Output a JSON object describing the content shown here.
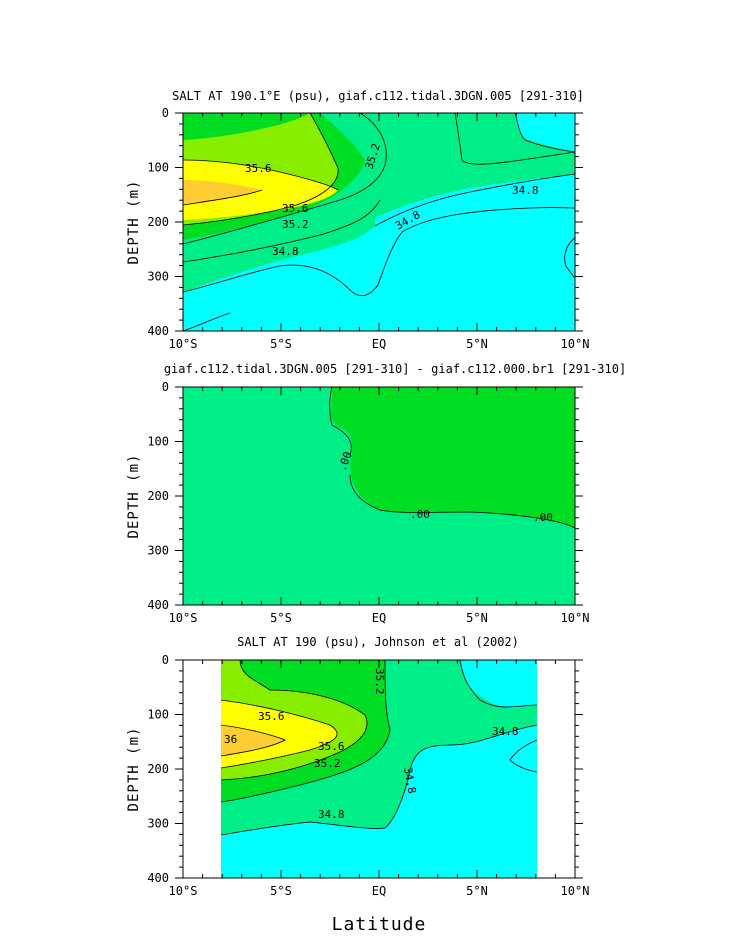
{
  "figure": {
    "xlabel": "Latitude",
    "colors": {
      "c1": "#00ffff",
      "c2": "#00ee88",
      "c3": "#00dd22",
      "c4": "#88ee00",
      "c5": "#ffff00",
      "c6": "#ffcc33"
    }
  },
  "chart_data": [
    {
      "type": "heatmap",
      "title": "SALT AT 190.1°E (psu), giaf.c112.tidal.3DGN.005 [291-310]",
      "ylabel": "DEPTH (m)",
      "xlabel": "",
      "xlim": [
        -10,
        10
      ],
      "ylim": [
        400,
        0
      ],
      "x_ticks": [
        "10°S",
        "5°S",
        "EQ",
        "5°N",
        "10°N"
      ],
      "y_ticks": [
        "0",
        "100",
        "200",
        "300",
        "400"
      ],
      "contour_labels": [
        "35.6",
        "35.6",
        "35.2",
        "35.2",
        "34.8",
        "34.8",
        "34.8"
      ],
      "contour_levels": [
        34.8,
        35.2,
        35.6
      ]
    },
    {
      "type": "heatmap",
      "title": "giaf.c112.tidal.3DGN.005 [291-310] - giaf.c112.000.br1 [291-310]",
      "ylabel": "DEPTH (m)",
      "xlabel": "",
      "xlim": [
        -10,
        10
      ],
      "ylim": [
        400,
        0
      ],
      "x_ticks": [
        "10°S",
        "5°S",
        "EQ",
        "5°N",
        "10°N"
      ],
      "y_ticks": [
        "0",
        "100",
        "200",
        "300",
        "400"
      ],
      "contour_labels": [
        ".00",
        ".00",
        ".00"
      ],
      "contour_levels": [
        0
      ]
    },
    {
      "type": "heatmap",
      "title": "SALT AT 190 (psu), Johnson et al (2002)",
      "ylabel": "DEPTH (m)",
      "xlabel": "Latitude",
      "xlim": [
        -10,
        10
      ],
      "ylim": [
        400,
        0
      ],
      "data_extent_lat": [
        -8,
        8
      ],
      "data_extent_depth": [
        10,
        400
      ],
      "x_ticks": [
        "10°S",
        "5°S",
        "EQ",
        "5°N",
        "10°N"
      ],
      "y_ticks": [
        "0",
        "100",
        "200",
        "300",
        "400"
      ],
      "contour_labels": [
        "35.2",
        "35.6",
        "36",
        "35.6",
        "35.2",
        "34.8",
        "34.8",
        "34.8"
      ],
      "contour_levels": [
        34.8,
        35.2,
        35.6,
        36.0
      ]
    }
  ]
}
